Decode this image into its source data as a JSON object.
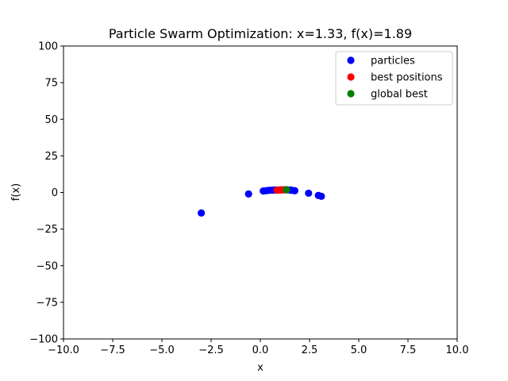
{
  "chart_data": {
    "type": "scatter",
    "title": "Particle Swarm Optimization: x=1.33, f(x)=1.89",
    "xlabel": "x",
    "ylabel": "f(x)",
    "xlim": [
      -10,
      10
    ],
    "ylim": [
      -100,
      100
    ],
    "xticks": [
      -10,
      -7.5,
      -5,
      -2.5,
      0,
      2.5,
      5,
      7.5,
      10
    ],
    "xtick_labels": [
      "−10.0",
      "−7.5",
      "−5.0",
      "−2.5",
      "0.0",
      "2.5",
      "5.0",
      "7.5",
      "10.0"
    ],
    "yticks": [
      -100,
      -75,
      -50,
      -25,
      0,
      25,
      50,
      75,
      100
    ],
    "ytick_labels": [
      "−100",
      "−75",
      "−50",
      "−25",
      "0",
      "25",
      "50",
      "75",
      "100"
    ],
    "grid": false,
    "legend_position": "top-right",
    "series": [
      {
        "name": "particles",
        "color": "#0000ff",
        "points": [
          [
            -3.0,
            -14.0
          ],
          [
            -0.6,
            -1.0
          ],
          [
            0.15,
            1.0
          ],
          [
            0.3,
            1.2
          ],
          [
            0.45,
            1.5
          ],
          [
            0.6,
            1.6
          ],
          [
            0.75,
            1.7
          ],
          [
            0.9,
            1.7
          ],
          [
            1.05,
            1.8
          ],
          [
            1.2,
            1.8
          ],
          [
            1.35,
            1.8
          ],
          [
            1.5,
            1.7
          ],
          [
            1.6,
            1.5
          ],
          [
            1.75,
            1.2
          ],
          [
            2.45,
            -0.5
          ],
          [
            2.95,
            -2.0
          ],
          [
            3.1,
            -2.6
          ]
        ]
      },
      {
        "name": "best positions",
        "color": "#ff0000",
        "points": [
          [
            0.85,
            1.6
          ],
          [
            1.0,
            1.7
          ],
          [
            1.1,
            1.8
          ],
          [
            1.25,
            1.85
          ]
        ]
      },
      {
        "name": "global best",
        "color": "#008000",
        "points": [
          [
            1.33,
            1.89
          ]
        ]
      }
    ]
  }
}
